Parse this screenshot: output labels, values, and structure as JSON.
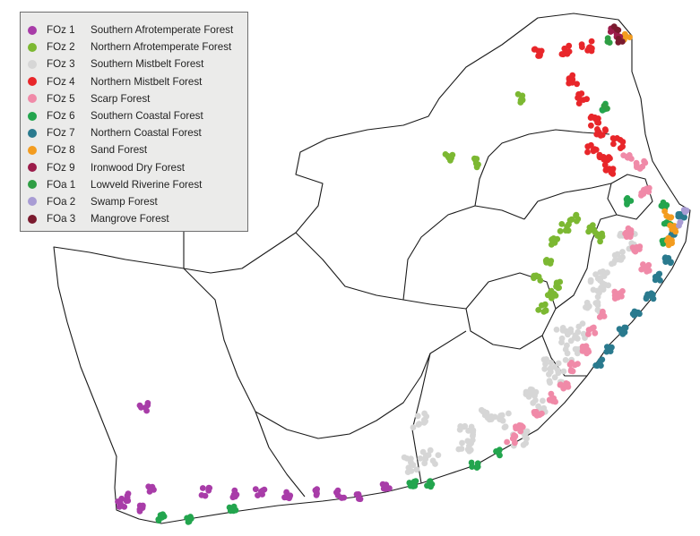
{
  "legend": {
    "items": [
      {
        "code": "FOz 1",
        "name": "Southern Afrotemperate Forest",
        "color": "#a83ca8"
      },
      {
        "code": "FOz 2",
        "name": "Northern Afrotemperate Forest",
        "color": "#7cb832"
      },
      {
        "code": "FOz 3",
        "name": "Southern Mistbelt Forest",
        "color": "#d6d6d6"
      },
      {
        "code": "FOz 4",
        "name": "Northern Mistbelt Forest",
        "color": "#e8262a"
      },
      {
        "code": "FOz 5",
        "name": "Scarp Forest",
        "color": "#f08aa8"
      },
      {
        "code": "FOz 6",
        "name": "Southern Coastal Forest",
        "color": "#23a54e"
      },
      {
        "code": "FOz 7",
        "name": "Northern Coastal Forest",
        "color": "#2a7a8e"
      },
      {
        "code": "FOz 8",
        "name": "Sand Forest",
        "color": "#f39c1f"
      },
      {
        "code": "FOz 9",
        "name": "Ironwood Dry Forest",
        "color": "#9b1c4a"
      },
      {
        "code": "FOa 1",
        "name": "Lowveld Riverine Forest",
        "color": "#2f9e44"
      },
      {
        "code": "FOa 2",
        "name": "Swamp Forest",
        "color": "#a89cd4"
      },
      {
        "code": "FOa 3",
        "name": "Mangrove Forest",
        "color": "#7a1a2e"
      }
    ]
  }
}
